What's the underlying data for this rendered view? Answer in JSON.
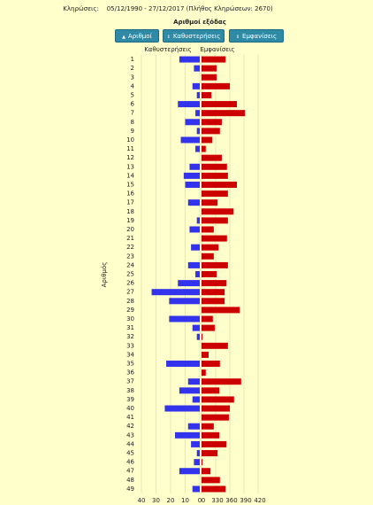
{
  "header": "Κληρώσεις:    05/12/1990 - 27/12/2017 (Πλήθος Κληρώσεων: 2670)",
  "buttons": [
    "Αριθμοί",
    "Καθυστερήσεις",
    "Εμφανίσεις"
  ],
  "chart_data": {
    "type": "bar",
    "title": "Αριθμοί εξόδας",
    "y_label": "Αριθμός",
    "categories": [
      "1",
      "2",
      "3",
      "4",
      "5",
      "6",
      "7",
      "8",
      "9",
      "10",
      "11",
      "12",
      "13",
      "14",
      "15",
      "16",
      "17",
      "18",
      "19",
      "20",
      "21",
      "22",
      "23",
      "24",
      "25",
      "26",
      "27",
      "28",
      "29",
      "30",
      "31",
      "32",
      "33",
      "34",
      "35",
      "36",
      "37",
      "38",
      "39",
      "40",
      "41",
      "42",
      "43",
      "44",
      "45",
      "46",
      "47",
      "48",
      "49"
    ],
    "series": [
      {
        "name": "Καθυστερήσεις",
        "color": "#3333ee",
        "values": [
          14,
          4,
          0,
          5,
          2,
          15,
          3,
          10,
          2,
          13,
          3,
          0,
          7,
          11,
          10,
          0,
          8,
          0,
          2,
          7,
          0,
          6,
          0,
          8,
          3,
          15,
          33,
          21,
          0,
          21,
          5,
          2,
          0,
          0,
          23,
          0,
          8,
          14,
          5,
          24,
          0,
          8,
          17,
          6,
          2,
          4,
          14,
          0,
          5
        ]
      },
      {
        "name": "Εμφανίσεις",
        "color": "#cc0000",
        "axis": "x2",
        "values": [
          351,
          332,
          332,
          360,
          321,
          375,
          392,
          343,
          339,
          323,
          309,
          343,
          354,
          356,
          375,
          356,
          334,
          368,
          356,
          326,
          354,
          336,
          326,
          356,
          332,
          353,
          349,
          349,
          381,
          324,
          328,
          302,
          356,
          315,
          339,
          309,
          384,
          338,
          369,
          360,
          358,
          326,
          338,
          353,
          334,
          302,
          319,
          339,
          351
        ]
      }
    ],
    "xlim": [
      40,
      0
    ],
    "xticks": [
      40,
      30,
      20,
      10,
      0
    ],
    "x2lim": [
      300,
      420
    ],
    "x2ticks": [
      {
        "value": 300,
        "label": "0"
      },
      330,
      360,
      390,
      420
    ],
    "grid": true
  }
}
